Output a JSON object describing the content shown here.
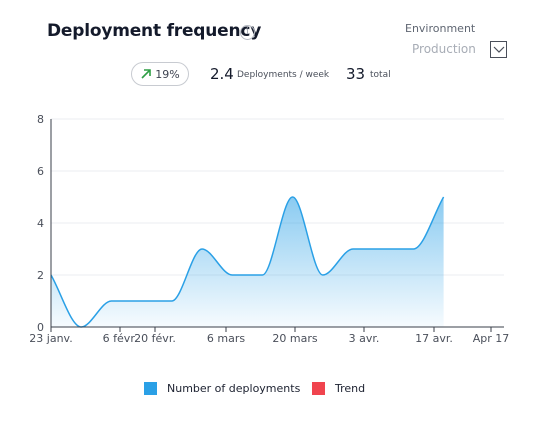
{
  "header": {
    "title": "Deployment frequency",
    "info_icon": "info-icon"
  },
  "filter": {
    "label": "Environment",
    "selected": "Production",
    "dropdown_icon": "chevron-down-icon"
  },
  "stats": {
    "trend_icon": "arrow-up-right-icon",
    "trend_value": "19%",
    "trend_color": "#2e9e44",
    "rate_value": "2.4",
    "rate_caption": "Deployments / week",
    "total_value": "33",
    "total_caption": "total"
  },
  "chart_data": {
    "type": "area",
    "x_labels": [
      "23 janv.",
      "6 févr.",
      "20 févr.",
      "6 mars",
      "20 mars",
      "3 avr.",
      "17 avr.",
      "Apr 17"
    ],
    "series": [
      {
        "name": "Number of deployments",
        "color": "#2aa0e6",
        "points": [
          [
            0,
            2
          ],
          [
            0.5,
            0
          ],
          [
            1,
            1
          ],
          [
            1.5,
            1
          ],
          [
            2,
            1
          ],
          [
            2.5,
            3
          ],
          [
            3,
            2
          ],
          [
            3.5,
            2
          ],
          [
            4,
            5
          ],
          [
            4.5,
            2
          ],
          [
            5,
            3
          ],
          [
            5.5,
            3
          ],
          [
            6,
            3
          ],
          [
            6.5,
            5
          ]
        ]
      },
      {
        "name": "Trend",
        "color": "#f0444e",
        "points": []
      }
    ],
    "ylim": [
      0,
      8
    ],
    "y_ticks": [
      0,
      2,
      4,
      6,
      8
    ],
    "grid": true,
    "legend_position": "bottom"
  }
}
